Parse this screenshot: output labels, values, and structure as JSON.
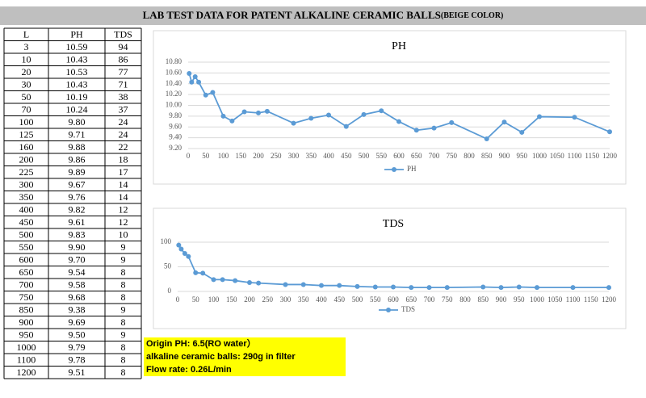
{
  "title": "LAB TEST DATA FOR PATENT ALKALINE CERAMIC BALLS",
  "title_suffix": "(BEIGE COLOR)",
  "table": {
    "header": [
      "L",
      "PH",
      "TDS"
    ],
    "rows": [
      [
        "3",
        "10.59",
        "94"
      ],
      [
        "10",
        "10.43",
        "86"
      ],
      [
        "20",
        "10.53",
        "77"
      ],
      [
        "30",
        "10.43",
        "71"
      ],
      [
        "50",
        "10.19",
        "38"
      ],
      [
        "70",
        "10.24",
        "37"
      ],
      [
        "100",
        "9.80",
        "24"
      ],
      [
        "125",
        "9.71",
        "24"
      ],
      [
        "160",
        "9.88",
        "22"
      ],
      [
        "200",
        "9.86",
        "18"
      ],
      [
        "225",
        "9.89",
        "17"
      ],
      [
        "300",
        "9.67",
        "14"
      ],
      [
        "350",
        "9.76",
        "14"
      ],
      [
        "400",
        "9.82",
        "12"
      ],
      [
        "450",
        "9.61",
        "12"
      ],
      [
        "500",
        "9.83",
        "10"
      ],
      [
        "550",
        "9.90",
        "9"
      ],
      [
        "600",
        "9.70",
        "9"
      ],
      [
        "650",
        "9.54",
        "8"
      ],
      [
        "700",
        "9.58",
        "8"
      ],
      [
        "750",
        "9.68",
        "8"
      ],
      [
        "850",
        "9.38",
        "9"
      ],
      [
        "900",
        "9.69",
        "8"
      ],
      [
        "950",
        "9.50",
        "9"
      ],
      [
        "1000",
        "9.79",
        "8"
      ],
      [
        "1100",
        "9.78",
        "8"
      ],
      [
        "1200",
        "9.51",
        "8"
      ]
    ]
  },
  "chart_data": [
    {
      "type": "line",
      "title": "PH",
      "x": [
        3,
        10,
        20,
        30,
        50,
        70,
        100,
        125,
        160,
        200,
        225,
        300,
        350,
        400,
        450,
        500,
        550,
        600,
        650,
        700,
        750,
        850,
        900,
        950,
        1000,
        1100,
        1200
      ],
      "series": [
        {
          "name": "PH",
          "color": "#5b9bd5",
          "values": [
            10.59,
            10.43,
            10.53,
            10.43,
            10.19,
            10.24,
            9.8,
            9.71,
            9.88,
            9.86,
            9.89,
            9.67,
            9.76,
            9.82,
            9.61,
            9.83,
            9.9,
            9.7,
            9.54,
            9.58,
            9.68,
            9.38,
            9.69,
            9.5,
            9.79,
            9.78,
            9.51
          ]
        }
      ],
      "xlim": [
        0,
        1200
      ],
      "xticks": [
        0,
        50,
        100,
        150,
        200,
        250,
        300,
        350,
        400,
        450,
        500,
        550,
        600,
        650,
        700,
        750,
        800,
        850,
        900,
        950,
        1000,
        1050,
        1100,
        1150,
        1200
      ],
      "ylim": [
        9.2,
        10.8
      ],
      "yticks": [
        {
          "value": 9.2,
          "label": "9.20"
        },
        {
          "value": 9.4,
          "label": "9.40"
        },
        {
          "value": 9.6,
          "label": "9.60"
        },
        {
          "value": 9.8,
          "label": "9.80"
        },
        {
          "value": 10,
          "label": "10.00"
        },
        {
          "value": 10.2,
          "label": "10.20"
        },
        {
          "value": 10.4,
          "label": "10.40"
        },
        {
          "value": 10.6,
          "label": "10.60"
        },
        {
          "value": 10.8,
          "label": "10.80"
        }
      ],
      "grid": true
    },
    {
      "type": "line",
      "title": "TDS",
      "x": [
        3,
        10,
        20,
        30,
        50,
        70,
        100,
        125,
        160,
        200,
        225,
        300,
        350,
        400,
        450,
        500,
        550,
        600,
        650,
        700,
        750,
        850,
        900,
        950,
        1000,
        1100,
        1200
      ],
      "series": [
        {
          "name": "TDS",
          "color": "#5b9bd5",
          "values": [
            94,
            86,
            77,
            71,
            38,
            37,
            24,
            24,
            22,
            18,
            17,
            14,
            14,
            12,
            12,
            10,
            9,
            9,
            8,
            8,
            8,
            9,
            8,
            9,
            8,
            8,
            8
          ]
        }
      ],
      "xlim": [
        0,
        1200
      ],
      "xticks": [
        0,
        50,
        100,
        150,
        200,
        250,
        300,
        350,
        400,
        450,
        500,
        550,
        600,
        650,
        700,
        750,
        800,
        850,
        900,
        950,
        1000,
        1050,
        1100,
        1150,
        1200
      ],
      "ylim": [
        0,
        100
      ],
      "yticks": [
        0,
        50,
        100
      ],
      "grid": true
    }
  ],
  "notes": [
    "Origin PH: 6.5(RO water）",
    "alkaline ceramic balls: 290g in filter",
    "Flow rate: 0.26L/min"
  ]
}
